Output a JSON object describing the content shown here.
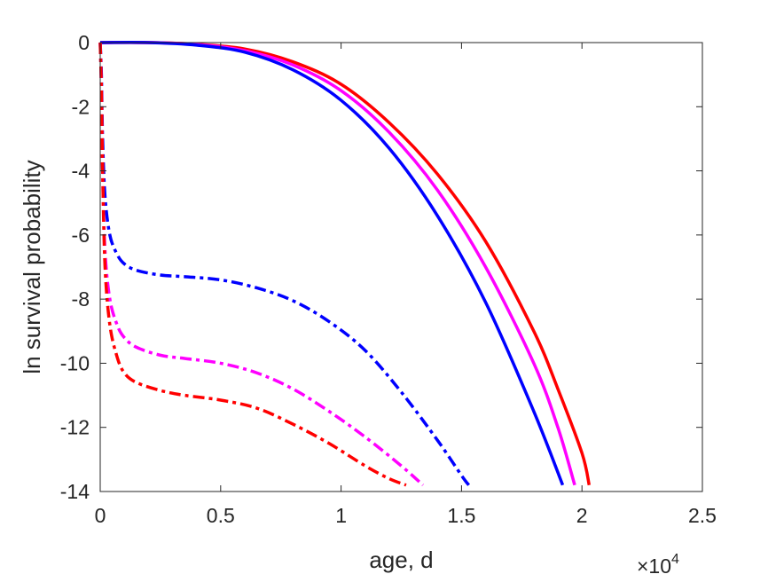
{
  "chart_data": {
    "type": "line",
    "title": "",
    "xlabel": "age, d",
    "ylabel": "ln survival probability",
    "x_exponent_label": {
      "base": "×10",
      "power": "4"
    },
    "xlim": [
      0,
      25000
    ],
    "ylim": [
      -14,
      0
    ],
    "x_ticks": [
      0,
      5000,
      10000,
      15000,
      20000,
      25000
    ],
    "x_tick_labels": [
      "0",
      "0.5",
      "1",
      "1.5",
      "2",
      "2.5"
    ],
    "y_ticks": [
      0,
      -2,
      -4,
      -6,
      -8,
      -10,
      -12,
      -14
    ],
    "y_tick_labels": [
      "0",
      "-2",
      "-4",
      "-6",
      "-8",
      "-10",
      "-12",
      "-14"
    ],
    "grid": false,
    "box": true,
    "series": [
      {
        "color": "#ff0000",
        "style": "solid",
        "x": [
          0,
          2000,
          4000,
          6000,
          8000,
          10000,
          12000,
          14000,
          16000,
          18000,
          19000,
          20000,
          20300
        ],
        "y": [
          0,
          0,
          -0.05,
          -0.2,
          -0.6,
          -1.3,
          -2.5,
          -4.1,
          -6.2,
          -9.0,
          -10.8,
          -12.8,
          -13.8
        ]
      },
      {
        "color": "#ff00ff",
        "style": "solid",
        "x": [
          0,
          2000,
          4000,
          6000,
          8000,
          10000,
          12000,
          14000,
          16000,
          18000,
          19000,
          19700
        ],
        "y": [
          0,
          0,
          -0.06,
          -0.25,
          -0.7,
          -1.5,
          -2.8,
          -4.6,
          -7.0,
          -10.0,
          -12.0,
          -13.8
        ]
      },
      {
        "color": "#0000ff",
        "style": "solid",
        "x": [
          0,
          2000,
          4000,
          6000,
          8000,
          10000,
          12000,
          14000,
          16000,
          18000,
          19200
        ],
        "y": [
          0,
          0,
          -0.08,
          -0.3,
          -0.85,
          -1.8,
          -3.3,
          -5.4,
          -8.1,
          -11.5,
          -13.8
        ]
      },
      {
        "color": "#0000ff",
        "style": "dashdot",
        "x": [
          0,
          50,
          100,
          200,
          400,
          700,
          1000,
          1500,
          2500,
          3500,
          5000,
          6500,
          8000,
          9500,
          11000,
          12500,
          14000,
          15000,
          15300
        ],
        "y": [
          0,
          -1.0,
          -3.0,
          -4.8,
          -6.0,
          -6.6,
          -6.9,
          -7.1,
          -7.25,
          -7.3,
          -7.4,
          -7.65,
          -8.05,
          -8.7,
          -9.6,
          -10.9,
          -12.4,
          -13.5,
          -13.8
        ]
      },
      {
        "color": "#ff00ff",
        "style": "dashdot",
        "x": [
          0,
          50,
          100,
          200,
          400,
          700,
          1000,
          1500,
          2500,
          3500,
          5000,
          6500,
          8000,
          9500,
          11000,
          12500,
          13400
        ],
        "y": [
          0,
          -1.5,
          -4.0,
          -6.5,
          -8.0,
          -8.8,
          -9.2,
          -9.5,
          -9.75,
          -9.85,
          -10.0,
          -10.3,
          -10.8,
          -11.5,
          -12.3,
          -13.2,
          -13.8
        ]
      },
      {
        "color": "#ff0000",
        "style": "dashdot",
        "x": [
          0,
          50,
          100,
          200,
          400,
          700,
          1000,
          1500,
          2500,
          3500,
          5000,
          6500,
          8000,
          9500,
          11000,
          12000,
          12700
        ],
        "y": [
          0,
          -1.5,
          -4.0,
          -7.0,
          -8.8,
          -9.8,
          -10.3,
          -10.6,
          -10.85,
          -11.0,
          -11.15,
          -11.4,
          -11.9,
          -12.5,
          -13.2,
          -13.6,
          -13.8
        ]
      }
    ]
  }
}
